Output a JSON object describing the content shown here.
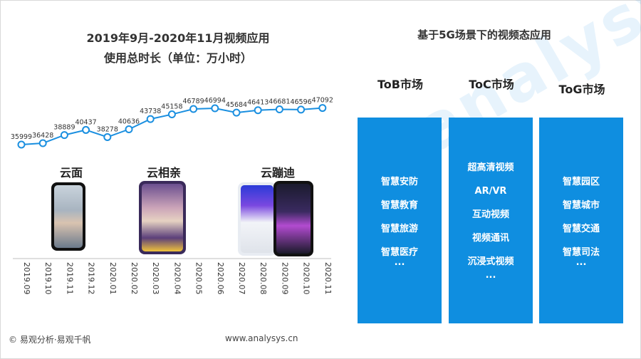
{
  "chart_title_line1": "2019年9月-2020年11月视频应用",
  "chart_title_line2": "使用总时长（单位：万小时）",
  "right_title": "基于5G场景下的视频态应用",
  "chart_data": {
    "type": "line",
    "title": "2019年9月-2020年11月视频应用 使用总时长（单位：万小时）",
    "categories": [
      "2019.09",
      "2019.10",
      "2019.11",
      "2019.12",
      "2020.01",
      "2020.02",
      "2020.03",
      "2020.04",
      "2020.05",
      "2020.06",
      "2020.07",
      "2020.08",
      "2020.09",
      "2020.10",
      "2020.11"
    ],
    "values": [
      35999,
      36428,
      38889,
      40437,
      38278,
      40636,
      43738,
      45158,
      46789,
      46994,
      45684,
      46413,
      46681,
      46596,
      47092
    ],
    "color": "#1a8fe0",
    "grid": false
  },
  "apps": [
    {
      "label": "云面"
    },
    {
      "label": "云相亲"
    },
    {
      "label": "云蹦迪"
    }
  ],
  "markets": [
    {
      "name": "ToB市场",
      "items": [
        "智慧安防",
        "智慧教育",
        "智慧旅游",
        "智慧医疗"
      ],
      "more": "..."
    },
    {
      "name": "ToC市场",
      "items": [
        "超高清视频",
        "AR/VR",
        "互动视频",
        "视频通讯",
        "沉浸式视频"
      ],
      "more": "..."
    },
    {
      "name": "ToG市场",
      "items": [
        "智慧园区",
        "智慧城市",
        "智慧交通",
        "智慧司法"
      ],
      "more": "..."
    }
  ],
  "footer": {
    "copyright": "© 易观分析·易观千帆",
    "url": "www.analysys.cn"
  },
  "watermark": "analysys",
  "colors": {
    "panel": "#0f8ee0",
    "line": "#1a8fe0"
  }
}
